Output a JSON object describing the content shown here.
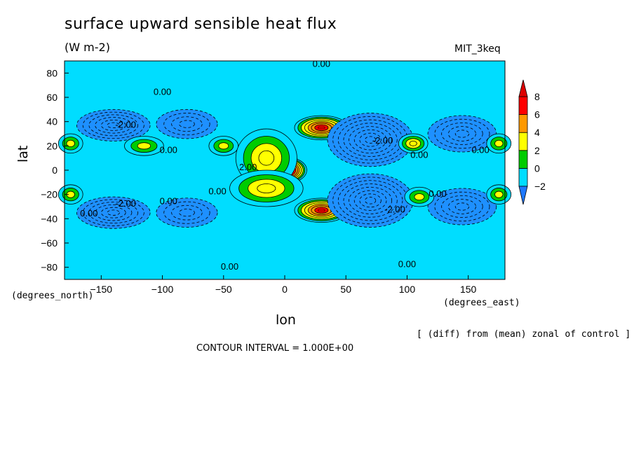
{
  "chart_data": {
    "type": "heatmap",
    "title": "surface upward sensible heat flux",
    "units": "(W m-2)",
    "model": "MIT_3keq",
    "xlabel": "lon",
    "ylabel": "lat",
    "x_unit_label": "(degrees_east)",
    "y_unit_label": "(degrees_north)",
    "note": "[ (diff) from (mean) zonal of control ]",
    "contour_interval": "CONTOUR INTERVAL = 1.000E+00",
    "xlim": [
      -180,
      180
    ],
    "ylim": [
      -90,
      90
    ],
    "xticks": [
      -150,
      -100,
      -50,
      0,
      50,
      100,
      150
    ],
    "yticks": [
      -80,
      -60,
      -40,
      -20,
      0,
      20,
      40,
      60,
      80
    ],
    "colorbar": {
      "levels": [
        -2,
        0,
        2,
        4,
        6,
        8
      ],
      "colors": [
        "#1e90ff",
        "#00ddff",
        "#00cc00",
        "#ffff00",
        "#ff9900",
        "#ff0000"
      ],
      "overflow_high": "#dd0000",
      "overflow_low": "#1e78ff"
    },
    "contour_labels": [
      {
        "text": "0.00",
        "x": 30,
        "y": 85
      },
      {
        "text": "0.00",
        "x": -100,
        "y": 62
      },
      {
        "text": "0.00",
        "x": -95,
        "y": 14
      },
      {
        "text": "0.00",
        "x": -95,
        "y": -28
      },
      {
        "text": "0.00",
        "x": -55,
        "y": -20
      },
      {
        "text": "0.00",
        "x": -45,
        "y": -82
      },
      {
        "text": "0.00",
        "x": 100,
        "y": -80
      },
      {
        "text": "0.00",
        "x": 110,
        "y": 10
      },
      {
        "text": "0.00",
        "x": 125,
        "y": -22
      },
      {
        "text": "0.00",
        "x": 160,
        "y": 14
      },
      {
        "text": "0.00",
        "x": -160,
        "y": -38
      },
      {
        "text": "-2.00",
        "x": -130,
        "y": 35
      },
      {
        "text": "-2.00",
        "x": -130,
        "y": -30
      },
      {
        "text": "-2.00",
        "x": 80,
        "y": 22
      },
      {
        "text": "-2.00",
        "x": 90,
        "y": -35
      },
      {
        "text": "2.00",
        "x": -30,
        "y": 0
      }
    ],
    "features": [
      {
        "kind": "max",
        "lon": 30,
        "lat": 35,
        "value": 8,
        "rx": 22,
        "ry": 10
      },
      {
        "kind": "max",
        "lon": 30,
        "lat": -33,
        "value": 8,
        "rx": 22,
        "ry": 10
      },
      {
        "kind": "max",
        "lon": 0,
        "lat": 0,
        "value": 12,
        "rx": 18,
        "ry": 11
      },
      {
        "kind": "min",
        "lon": -140,
        "lat": 37,
        "value": -6,
        "rx": 30,
        "ry": 13
      },
      {
        "kind": "min",
        "lon": -80,
        "lat": 38,
        "value": -4,
        "rx": 25,
        "ry": 12
      },
      {
        "kind": "min",
        "lon": -140,
        "lat": -35,
        "value": -6,
        "rx": 30,
        "ry": 13
      },
      {
        "kind": "min",
        "lon": -80,
        "lat": -35,
        "value": -4,
        "rx": 25,
        "ry": 12
      },
      {
        "kind": "min",
        "lon": 70,
        "lat": 25,
        "value": -8,
        "rx": 35,
        "ry": 22
      },
      {
        "kind": "min",
        "lon": 70,
        "lat": -25,
        "value": -8,
        "rx": 35,
        "ry": 22
      },
      {
        "kind": "min",
        "lon": 145,
        "lat": 30,
        "value": -5,
        "rx": 28,
        "ry": 15
      },
      {
        "kind": "min",
        "lon": 145,
        "lat": -30,
        "value": -5,
        "rx": 28,
        "ry": 15
      },
      {
        "kind": "pos",
        "lon": -115,
        "lat": 20,
        "value": 3,
        "rx": 16,
        "ry": 8
      },
      {
        "kind": "pos",
        "lon": -50,
        "lat": 20,
        "value": 3,
        "rx": 12,
        "ry": 8
      },
      {
        "kind": "pos",
        "lon": 105,
        "lat": 22,
        "value": 4,
        "rx": 12,
        "ry": 8
      },
      {
        "kind": "pos",
        "lon": 110,
        "lat": -22,
        "value": 3,
        "rx": 12,
        "ry": 8
      },
      {
        "kind": "pos",
        "lon": -175,
        "lat": 22,
        "value": 3,
        "rx": 10,
        "ry": 8
      },
      {
        "kind": "pos",
        "lon": -175,
        "lat": -20,
        "value": 3,
        "rx": 10,
        "ry": 8
      },
      {
        "kind": "pos",
        "lon": 175,
        "lat": 22,
        "value": 3,
        "rx": 10,
        "ry": 8
      },
      {
        "kind": "pos",
        "lon": 175,
        "lat": -20,
        "value": 3,
        "rx": 10,
        "ry": 8
      },
      {
        "kind": "pos",
        "lon": -15,
        "lat": 10,
        "value": 4,
        "rx": 25,
        "ry": 24
      },
      {
        "kind": "pos",
        "lon": -15,
        "lat": -15,
        "value": 4,
        "rx": 30,
        "ry": 15
      }
    ]
  }
}
